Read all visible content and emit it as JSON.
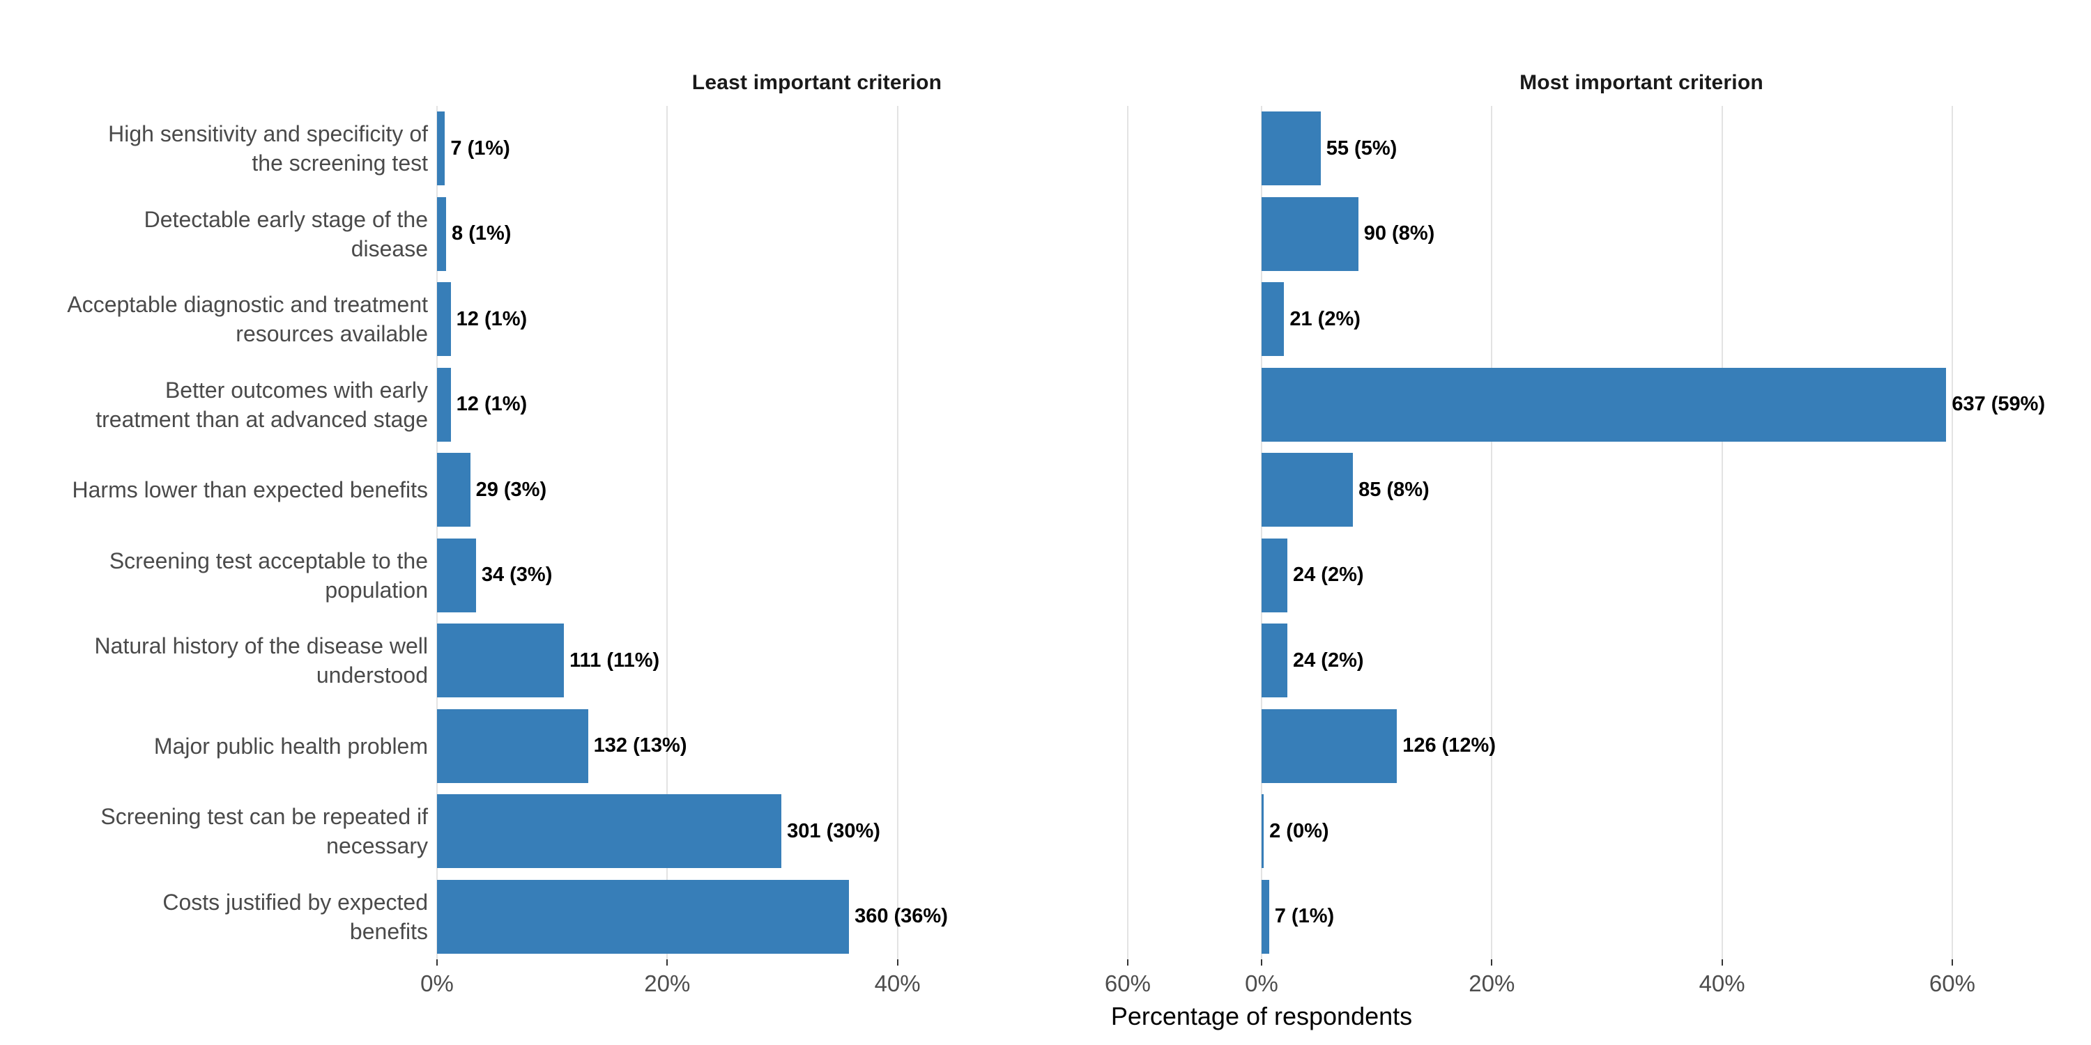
{
  "chart_data": {
    "type": "bar",
    "orientation": "horizontal",
    "xlabel": "Percentage of respondents",
    "ylabel": "",
    "x_tick_labels": [
      "0%",
      "20%",
      "40%",
      "60%"
    ],
    "x_ticks_pct": [
      0,
      20,
      40,
      60
    ],
    "xlim": [
      0,
      66
    ],
    "grid": "vertical-only",
    "legend": "none",
    "categories": [
      "High sensitivity and specificity of\nthe screening test",
      "Detectable early stage of the\ndisease",
      "Acceptable diagnostic and treatment\nresources available",
      "Better outcomes with early\ntreatment than at advanced stage",
      "Harms lower than expected benefits",
      "Screening test acceptable to the\npopulation",
      "Natural history of the disease well\nunderstood",
      "Major public health problem",
      "Screening test can be repeated if\nnecessary",
      "Costs justified by expected\nbenefits"
    ],
    "facets": [
      {
        "title": "Least important criterion",
        "values": [
          7,
          8,
          12,
          12,
          29,
          34,
          111,
          132,
          301,
          360
        ],
        "pct_of_respondents": [
          0.69,
          0.79,
          1.19,
          1.19,
          2.88,
          3.38,
          11.03,
          13.12,
          29.92,
          35.79
        ],
        "bar_labels": [
          "7 (1%)",
          "8 (1%)",
          "12 (1%)",
          "12 (1%)",
          "29 (3%)",
          "34 (3%)",
          "111 (11%)",
          "132 (13%)",
          "301 (30%)",
          "360 (36%)"
        ]
      },
      {
        "title": "Most important criterion",
        "values": [
          55,
          90,
          21,
          637,
          85,
          24,
          24,
          126,
          2,
          7
        ],
        "pct_of_respondents": [
          5.13,
          8.4,
          1.96,
          59.48,
          7.94,
          2.24,
          2.24,
          11.76,
          0.19,
          0.65
        ],
        "bar_labels": [
          "55 (5%)",
          "90 (8%)",
          "21 (2%)",
          "637 (59%)",
          "85 (8%)",
          "24 (2%)",
          "24 (2%)",
          "126 (12%)",
          "2 (0%)",
          "7 (1%)"
        ]
      }
    ],
    "colors": {
      "bar": "#377eb8",
      "grid": "#e3e3e3",
      "tick_mark": "#333333",
      "category_label": "#4a4a4a",
      "tick_label": "#4d4d4d",
      "value_label": "#000000",
      "facet_title": "#1a1a1a",
      "background": "#ffffff"
    }
  }
}
